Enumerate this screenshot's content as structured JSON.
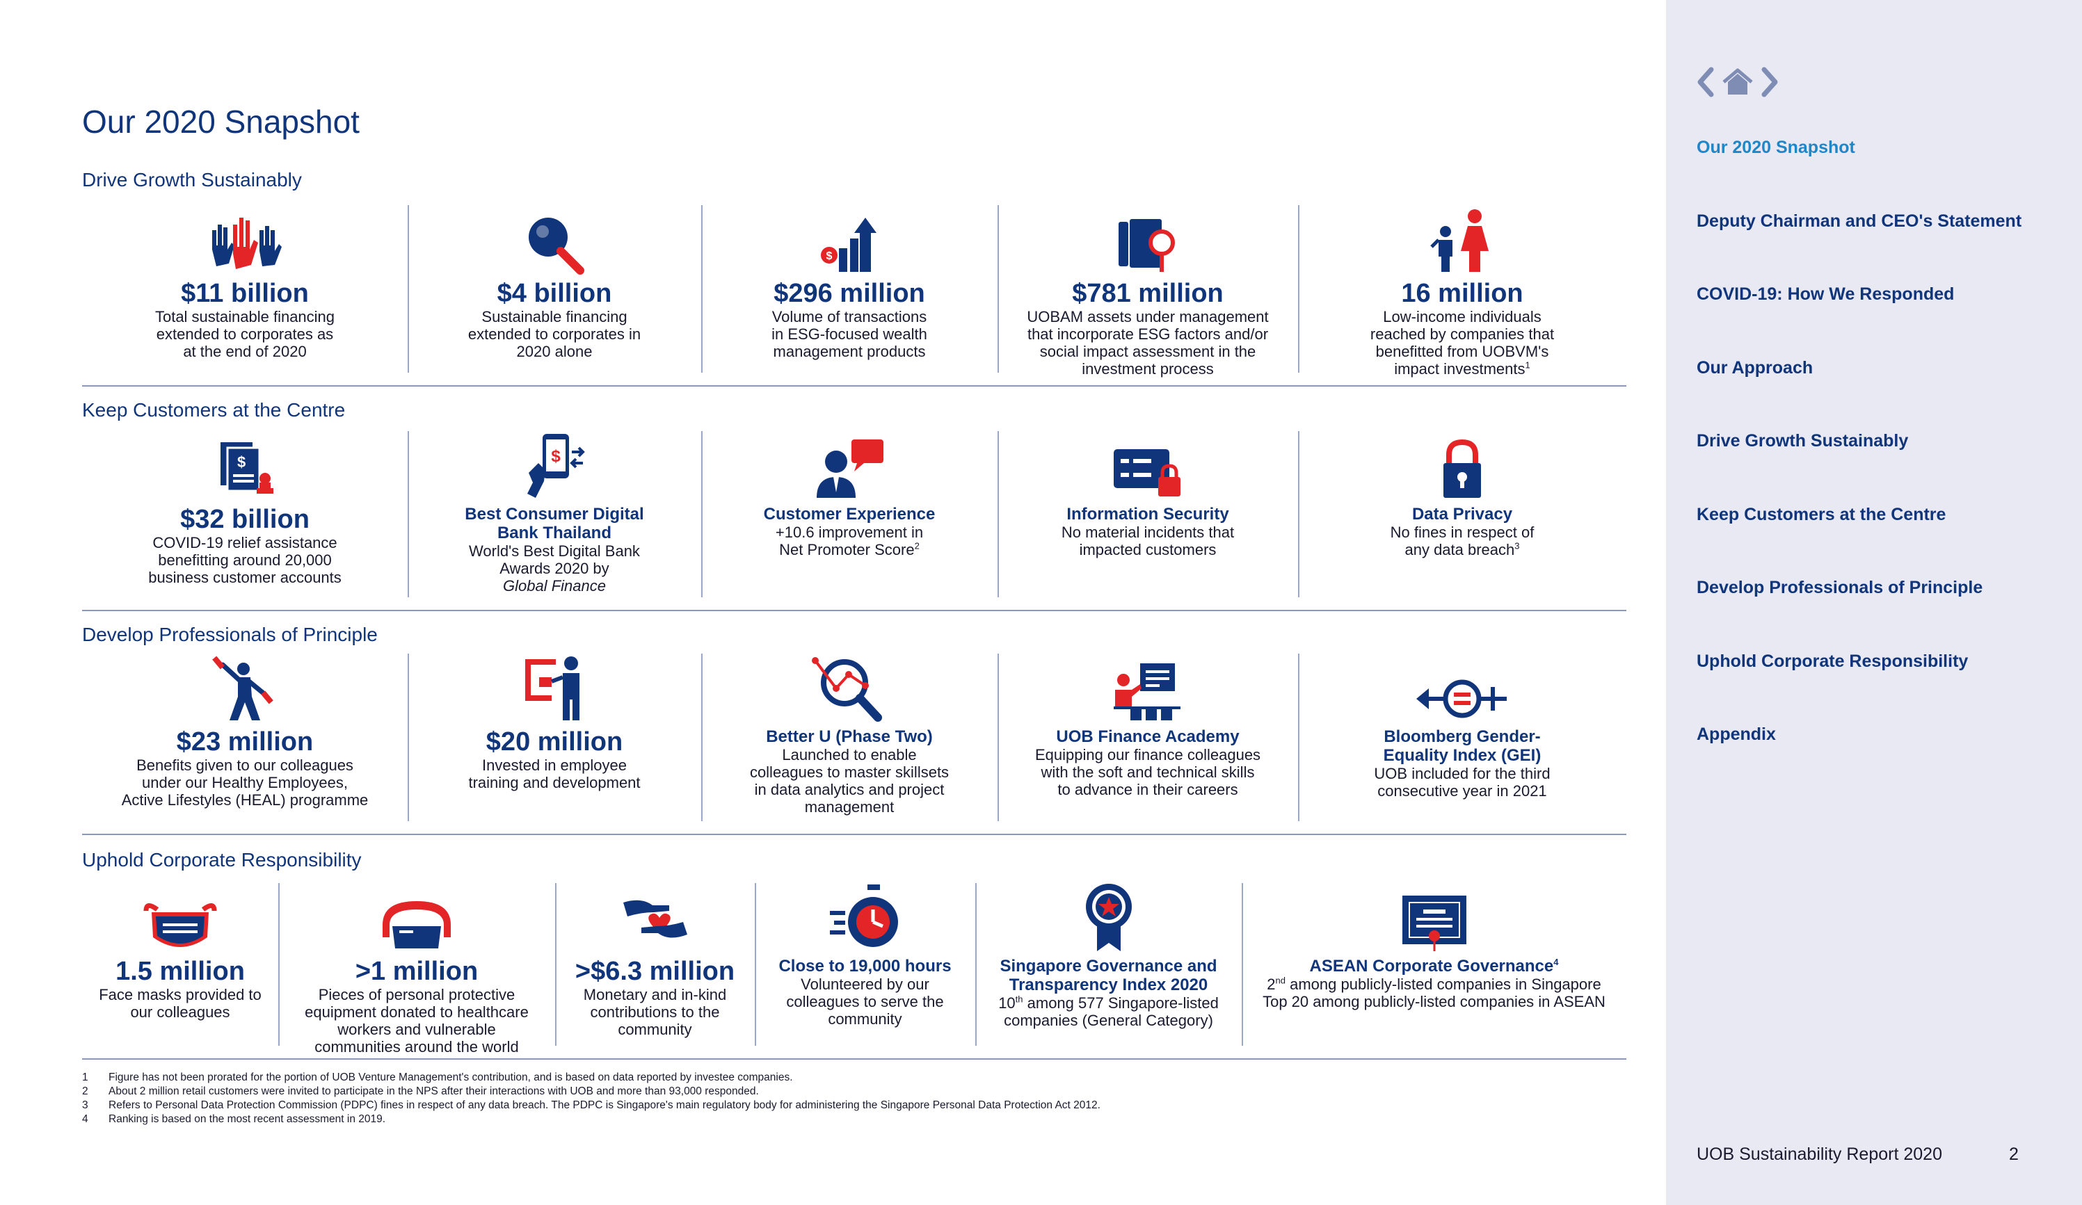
{
  "page_title": "Our 2020 Snapshot",
  "sections": [
    {
      "title": "Drive Growth Sustainably",
      "items": [
        {
          "big": "$11 billion",
          "head": "",
          "desc": "Total sustainable financing\nextended to corporates as\nat the end of 2020",
          "icon": "raised-hands-icon"
        },
        {
          "big": "$4 billion",
          "head": "",
          "desc": "Sustainable financing\nextended to corporates in\n2020 alone",
          "icon": "magnifier-icon"
        },
        {
          "big": "$296 million",
          "head": "",
          "desc": "Volume of transactions\nin ESG-focused wealth\nmanagement products",
          "icon": "growth-arrow-icon"
        },
        {
          "big": "$781 million",
          "head": "",
          "desc": "UOBAM assets under management\nthat incorporate ESG factors and/or\nsocial impact assessment in the\ninvestment process",
          "icon": "document-search-icon"
        },
        {
          "big": "16 million",
          "head": "",
          "desc": "Low-income individuals\nreached by companies that\nbenefitted from UOBVM's\nimpact investments",
          "sup": "1",
          "icon": "family-icon"
        }
      ]
    },
    {
      "title": "Keep Customers at the Centre",
      "items": [
        {
          "big": "$32 billion",
          "head": "",
          "desc": "COVID-19 relief assistance\nbenefitting around 20,000\nbusiness customer accounts",
          "icon": "relief-document-icon"
        },
        {
          "big": "",
          "head": "Best Consumer Digital\nBank Thailand",
          "desc": "World's Best Digital Bank\nAwards 2020 by",
          "desc_italic": "Global Finance",
          "icon": "mobile-payment-icon"
        },
        {
          "big": "",
          "head": "Customer Experience",
          "desc": "+10.6 improvement in\nNet Promoter Score",
          "sup": "2",
          "icon": "customer-chat-icon"
        },
        {
          "big": "",
          "head": "Information Security",
          "desc": "No material incidents that\nimpacted customers",
          "icon": "secure-card-icon"
        },
        {
          "big": "",
          "head": "Data Privacy",
          "desc": "No fines in respect of\nany data breach",
          "sup": "3",
          "icon": "padlock-icon"
        }
      ]
    },
    {
      "title": "Develop Professionals of Principle",
      "items": [
        {
          "big": "$23 million",
          "head": "",
          "desc": "Benefits given to our colleagues\nunder our Healthy Employees,\nActive Lifestyles (HEAL) programme",
          "icon": "exercise-person-icon"
        },
        {
          "big": "$20 million",
          "head": "",
          "desc": "Invested in employee\ntraining and development",
          "icon": "presenter-icon"
        },
        {
          "big": "",
          "head": "Better U (Phase Two)",
          "desc": "Launched to enable\ncolleagues to master skillsets\nin data analytics and project\nmanagement",
          "icon": "analytics-magnifier-icon"
        },
        {
          "big": "",
          "head": "UOB Finance Academy",
          "desc": "Equipping our finance colleagues\nwith the soft and technical skills\nto advance in their careers",
          "icon": "classroom-icon"
        },
        {
          "big": "",
          "head": "Bloomberg Gender-\nEquality Index (GEI)",
          "desc": "UOB included for the third\nconsecutive year in 2021",
          "icon": "equality-icon"
        }
      ]
    },
    {
      "title": "Uphold Corporate Responsibility",
      "items": [
        {
          "big": "1.5 million",
          "head": "",
          "desc": "Face masks provided to\nour colleagues",
          "icon": "face-mask-icon"
        },
        {
          "big": ">1 million",
          "head": "",
          "desc": "Pieces of personal protective\nequipment donated to healthcare\nworkers and vulnerable\ncommunities around the world",
          "icon": "goggles-icon"
        },
        {
          "big": ">$6.3 million",
          "head": "",
          "desc": "Monetary and in-kind\ncontributions to the\ncommunity",
          "icon": "giving-hands-icon"
        },
        {
          "big": "",
          "head": "Close to 19,000 hours",
          "desc": "Volunteered by our\ncolleagues to serve the\ncommunity",
          "icon": "stopwatch-icon"
        },
        {
          "big": "",
          "head": "Singapore Governance and\nTransparency Index 2020",
          "desc_html": "10<sup>th</sup> among 577 Singapore-listed\ncompanies (General Category)",
          "icon": "award-ribbon-icon"
        },
        {
          "big": "",
          "head": "ASEAN Corporate Governance",
          "head_sup": "4",
          "desc_html": "2<sup>nd</sup> among publicly-listed companies in Singapore\nTop 20 among publicly-listed companies in ASEAN",
          "icon": "certificate-icon"
        }
      ]
    }
  ],
  "footnotes": [
    {
      "n": "1",
      "text": "Figure has not been prorated for the portion of UOB Venture Management's contribution, and is based on data reported by investee companies."
    },
    {
      "n": "2",
      "text": "About 2 million retail customers were invited to participate in the NPS after their interactions with UOB and more than 93,000 responded."
    },
    {
      "n": "3",
      "text": "Refers to Personal Data Protection Commission (PDPC) fines in respect of any data breach. The PDPC is Singapore's main regulatory body for administering the Singapore Personal Data Protection Act 2012."
    },
    {
      "n": "4",
      "text": "Ranking is based on the most recent assessment in 2019."
    }
  ],
  "nav": {
    "items": [
      "Our 2020 Snapshot",
      "Deputy Chairman and CEO's Statement",
      "COVID-19: How We Responded",
      "Our Approach",
      "Drive Growth Sustainably",
      "Keep Customers at the Centre",
      "Develop Professionals of Principle",
      "Uphold Corporate Responsibility",
      "Appendix"
    ],
    "active_index": 0
  },
  "footer": {
    "report": "UOB Sustainability Report 2020",
    "page": "2"
  },
  "colors": {
    "navy": "#11357a",
    "red": "#e42528",
    "link": "#1f86c8",
    "sidebar": "#e8e9f3"
  }
}
